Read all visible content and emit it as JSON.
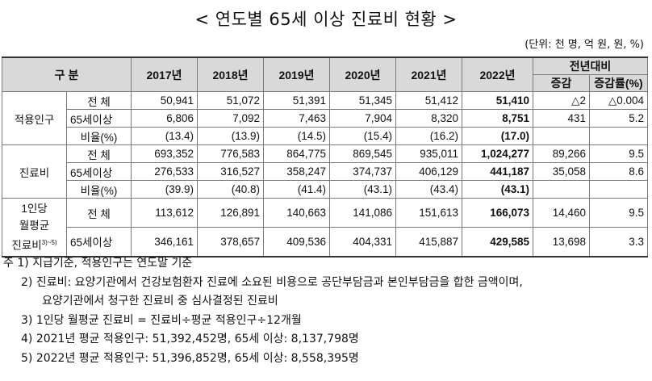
{
  "title": "< 연도별 65세 이상 진료비 현황 >",
  "unit": "(단위: 천 명, 억 원, 원, %)",
  "header": {
    "category": "구      분",
    "years": [
      "2017년",
      "2018년",
      "2019년",
      "2020년",
      "2021년",
      "2022년"
    ],
    "compare": "전년대비",
    "increase": "증감",
    "increase_rate": "증감률(%)"
  },
  "groups": [
    {
      "name": "적용인구",
      "rows": [
        {
          "label": "전    체",
          "values": [
            "50,941",
            "51,072",
            "51,391",
            "51,345",
            "51,412",
            "51,410"
          ],
          "diff": "△2",
          "rate": "△0.004"
        },
        {
          "label": "65세이상",
          "values": [
            "6,806",
            "7,092",
            "7,463",
            "7,904",
            "8,320",
            "8,751"
          ],
          "diff": "431",
          "rate": "5.2"
        },
        {
          "label": "비율(%)",
          "values": [
            "(13.4)",
            "(13.9)",
            "(14.5)",
            "(15.4)",
            "(16.2)",
            "(17.0)"
          ],
          "diff": "",
          "rate": ""
        }
      ]
    },
    {
      "name": "진료비",
      "rows": [
        {
          "label": "전    체",
          "values": [
            "693,352",
            "776,583",
            "864,775",
            "869,545",
            "935,011",
            "1,024,277"
          ],
          "diff": "89,266",
          "rate": "9.5"
        },
        {
          "label": "65세이상",
          "values": [
            "276,533",
            "316,527",
            "358,247",
            "374,737",
            "406,129",
            "441,187"
          ],
          "diff": "35,058",
          "rate": "8.6"
        },
        {
          "label": "비율(%)",
          "values": [
            "(39.9)",
            "(40.8)",
            "(41.4)",
            "(43.1)",
            "(43.4)",
            "(43.1)"
          ],
          "diff": "",
          "rate": ""
        }
      ]
    },
    {
      "name_lines": [
        "1인당",
        "월평균",
        "진료비"
      ],
      "name_sup": "3)~5)",
      "rows": [
        {
          "label": "전    체",
          "values": [
            "113,612",
            "126,891",
            "140,663",
            "141,086",
            "151,613",
            "166,073"
          ],
          "diff": "14,460",
          "rate": "9.5"
        },
        {
          "label": "65세이상",
          "values": [
            "346,161",
            "378,657",
            "409,536",
            "404,331",
            "415,887",
            "429,585"
          ],
          "diff": "13,698",
          "rate": "3.3"
        }
      ]
    }
  ],
  "notes": [
    "주 1) 지급기준, 적용인구는 연도말 기준",
    "2) 진료비: 요양기관에서 건강보험환자 진료에 소요된 비용으로 공단부담금과 본인부담금을 합한 금액이며,",
    "요양기관에서 청구한 진료비 중 심사결정된 진료비",
    "3) 1인당 월평균 진료비 = 진료비÷평균 적용인구÷12개월",
    "4) 2021년 평균 적용인구: 51,392,452명, 65세 이상: 8,137,798명",
    "5) 2022년 평균 적용인구: 51,396,852명, 65세 이상: 8,558,395명"
  ]
}
